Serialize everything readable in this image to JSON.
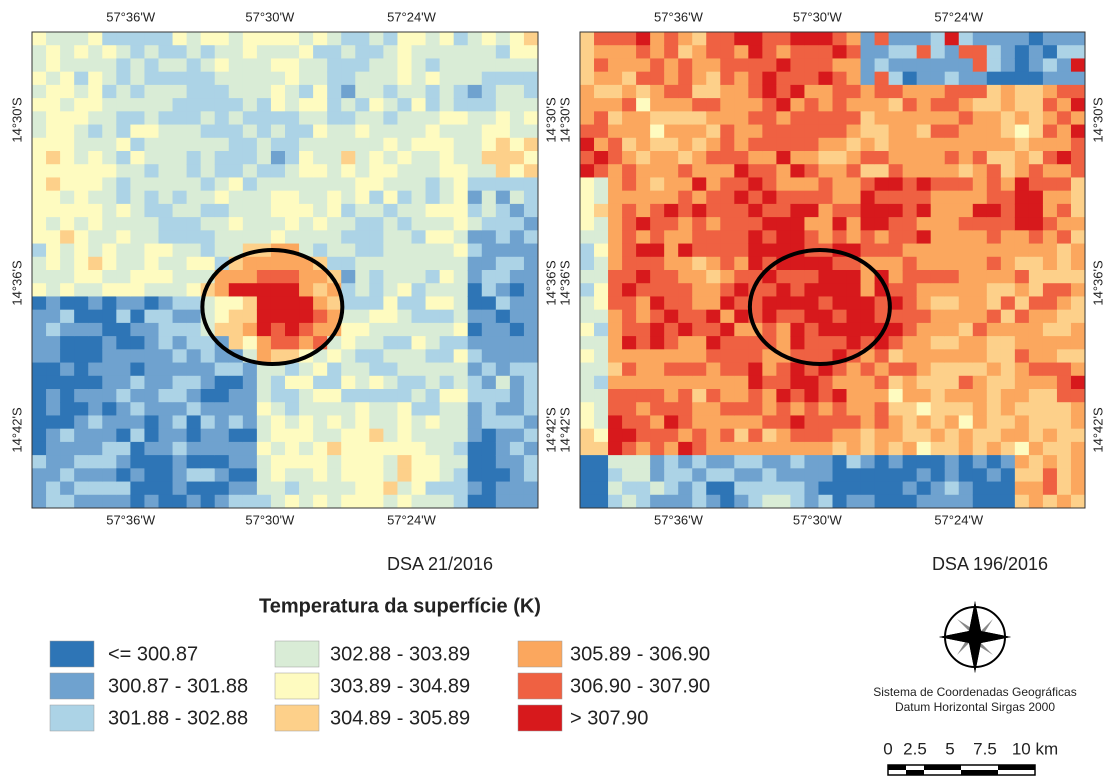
{
  "maps": [
    {
      "caption": "DSA 21/2016",
      "top_labels": [
        "57°36'W",
        "57°30'W",
        "57°24'W"
      ],
      "bottom_labels": [
        "57°36'W",
        "57°30'W",
        "57°24'W"
      ],
      "left_labels": [
        "14°30'S",
        "14°36'S",
        "14°42'S"
      ],
      "right_labels": [
        "14°30'S",
        "14°36'S",
        "14°42'S"
      ]
    },
    {
      "caption": "DSA 196/2016",
      "top_labels": [
        "57°36'W",
        "57°30'W",
        "57°24'W"
      ],
      "bottom_labels": [
        "57°36'W",
        "57°30'W",
        "57°24'W"
      ],
      "left_labels": [
        "14°30'S",
        "14°36'S",
        "14°42'S"
      ],
      "right_labels": [
        "14°30'S",
        "14°36'S",
        "14°42'S"
      ]
    }
  ],
  "legend": {
    "title": "Temperatura da superfície (K)",
    "items": [
      {
        "label": "<= 300.87",
        "color": "#2e75b6"
      },
      {
        "label": "300.87 - 301.88",
        "color": "#6fa2cf"
      },
      {
        "label": "301.88 - 302.88",
        "color": "#acd3e6"
      },
      {
        "label": "302.88 - 303.89",
        "color": "#d9ecd6"
      },
      {
        "label": "303.89 - 304.89",
        "color": "#fefbc0"
      },
      {
        "label": "304.89 - 305.89",
        "color": "#fdd08a"
      },
      {
        "label": "305.89 - 306.90",
        "color": "#fba75e"
      },
      {
        "label": "306.90 - 307.90",
        "color": "#ef6142"
      },
      {
        "label": "> 307.90",
        "color": "#d7191c"
      }
    ]
  },
  "coordinate_system": [
    "Sistema de Coordenadas Geográficas",
    "Datum Horizontal Sirgas 2000"
  ],
  "scale_bar": {
    "labels": [
      "0",
      "2.5",
      "5",
      "7.5",
      "10 km"
    ]
  }
}
